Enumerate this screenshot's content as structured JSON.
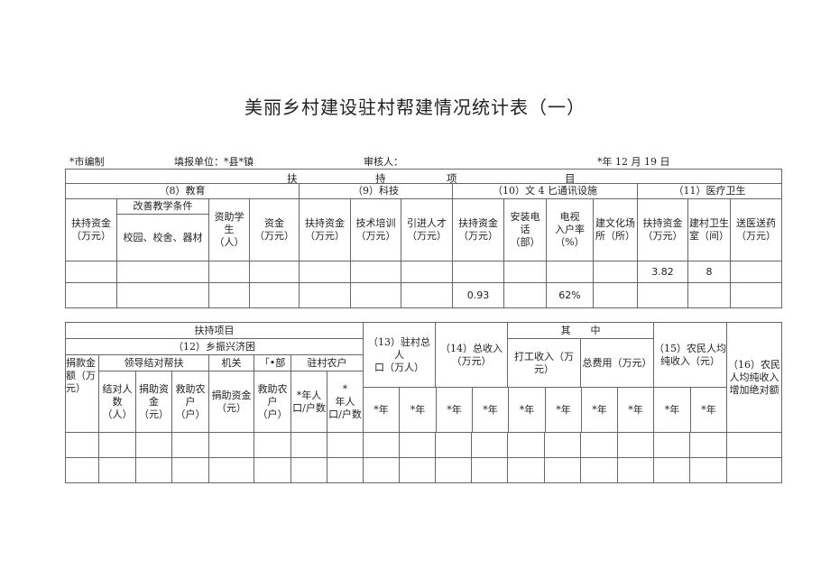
{
  "title": "美丽乡村建设驻村帮建情况统计表（一）",
  "meta": {
    "compiler": "*市编制",
    "unit": "填报单位：*县*镇",
    "reviewer": "审核人：",
    "date": "*年 12 月 19 日"
  },
  "table1": {
    "top_header": [
      "扶",
      "持",
      "项",
      "目"
    ],
    "sections": [
      "（8）教育",
      "（9）科技",
      "（10）文 4 匕通讯设施",
      "（11）医疗卫生"
    ],
    "columns": {
      "edu_fund": "扶持资金\n（万元）",
      "edu_improve": "改善教学条件",
      "edu_campus": "校园、校舍、器材",
      "edu_aid_students": "资助学\n生\n（人）",
      "edu_aid_fund": "资金\n（万元）",
      "tech_fund": "扶持资金\n（万元）",
      "tech_training": "技术培训\n（万元）",
      "tech_talent": "引进人才\n（万元）",
      "culture_fund": "扶持资金\n（万元）",
      "culture_phone": "安装电\n话\n（部）",
      "culture_tv": "电视\n入户率\n（%）",
      "culture_venue": "建文化场\n所（所）",
      "medical_fund": "扶持资金\n（万元）",
      "medical_clinic": "建村卫生\n室（间）",
      "medical_aid": "送医送药\n（万元）"
    },
    "rows": [
      {
        "medical_fund": "3.82",
        "medical_clinic": "8"
      },
      {
        "culture_fund": "0.93",
        "culture_tv": "62%"
      }
    ]
  },
  "table2": {
    "header": "扶持项目",
    "section12": "（12）乡振兴济困",
    "donation": "捐款金\n额（万\n元）",
    "leader_pair": "领导结对帮扶",
    "organ": "机关",
    "dept": "「•部",
    "village_households": "驻村农户",
    "pair_count": "结对人\n数\n（人）",
    "donate_fund": "捐助资\n金\n（元）",
    "aid_households": "救助农\n户\n（户）",
    "organ_fund": "捐助资金\n（元）",
    "dept_aid": "救助农\n户\n（户）",
    "year_pop_a": "*年人\n口/户数",
    "year_pop_b": "*\n年人\n口/户数",
    "col13": "（13）驻村总人\n口（万人）",
    "col14": "（14）总收入\n（万元）",
    "among": "其　　中",
    "work_income": "打工收入（万\n元）",
    "total_cost": "总费用（万元）",
    "col15": "（15）农民人均\n纯收入（元）",
    "col16": "（16）农民\n人均纯收入\n增加绝对额",
    "year": "*年"
  }
}
